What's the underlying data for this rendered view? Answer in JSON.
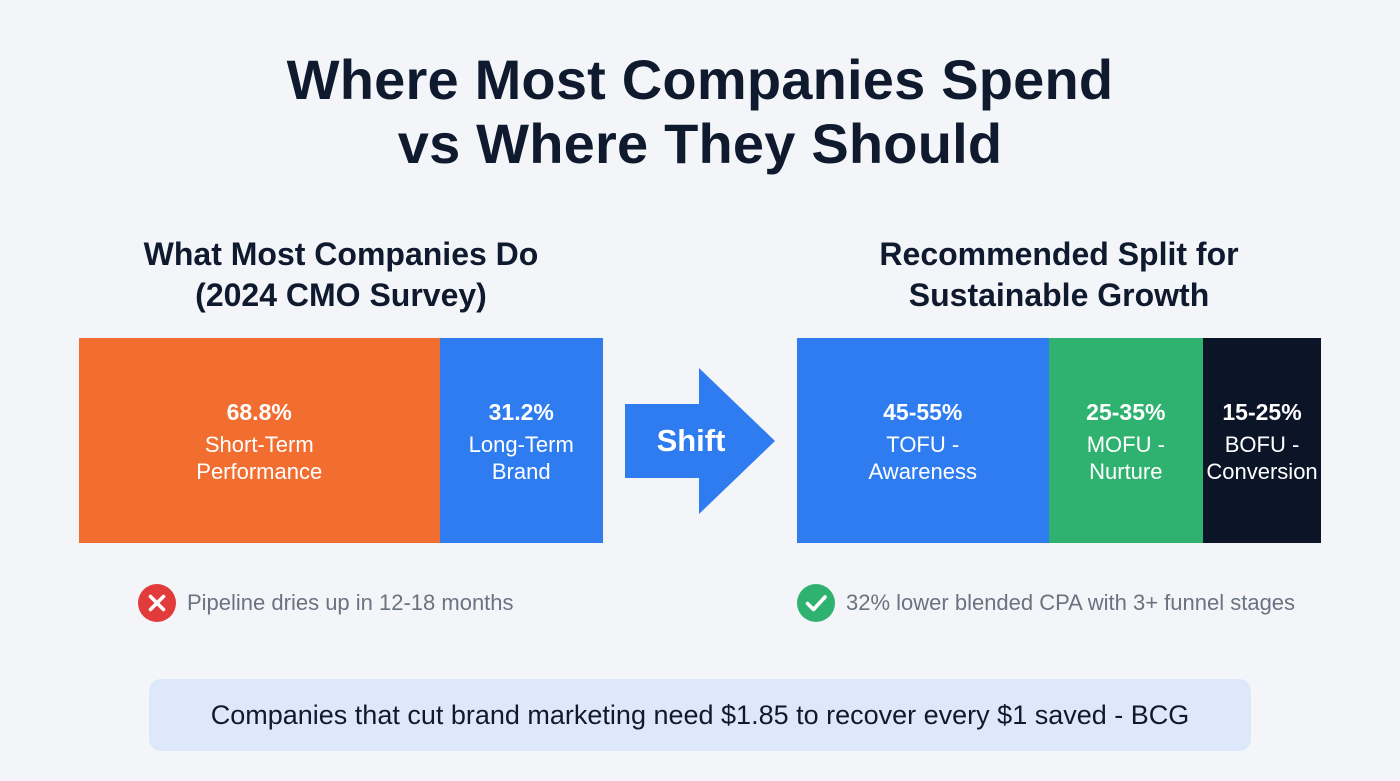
{
  "title": {
    "line1": "Where Most Companies Spend",
    "line2": "vs Where They Should"
  },
  "chart_data": [
    {
      "type": "bar",
      "orientation": "horizontal-stacked",
      "title": "What Most Companies Do (2024 CMO Survey)",
      "title_lines": [
        "What Most Companies Do",
        "(2024 CMO Survey)"
      ],
      "categories": [
        "Short-Term Performance",
        "Long-Term Brand"
      ],
      "values": [
        68.8,
        31.2
      ],
      "value_labels": [
        "68.8%",
        "31.2%"
      ],
      "label_lines": [
        [
          "Short-Term",
          "Performance"
        ],
        [
          "Long-Term",
          "Brand"
        ]
      ],
      "colors": [
        "#f26d30",
        "#2f7cf0"
      ],
      "unit": "%"
    },
    {
      "type": "bar",
      "orientation": "horizontal-stacked",
      "title": "Recommended Split for Sustainable Growth",
      "title_lines": [
        "Recommended Split for",
        "Sustainable Growth"
      ],
      "categories": [
        "TOFU - Awareness",
        "MOFU - Nurture",
        "BOFU - Conversion"
      ],
      "values": [
        48,
        29.5,
        22.5
      ],
      "value_labels": [
        "45-55%",
        "25-35%",
        "15-25%"
      ],
      "label_lines": [
        [
          "TOFU -",
          "Awareness"
        ],
        [
          "MOFU -",
          "Nurture"
        ],
        [
          "BOFU -",
          "Conversion"
        ]
      ],
      "colors": [
        "#2f7cf0",
        "#2fb26f",
        "#0c1428"
      ],
      "unit": "%"
    }
  ],
  "arrow": {
    "label": "Shift",
    "color": "#2f7cf0"
  },
  "notes": {
    "left": {
      "icon": "x-circle-icon",
      "text": "Pipeline dries up in 12-18 months",
      "color": "#e23b3b"
    },
    "right": {
      "icon": "check-circle-icon",
      "text": "32% lower blended CPA with 3+ funnel stages",
      "color": "#2fb26f"
    }
  },
  "footer": {
    "text": "Companies that cut brand marketing need $1.85 to recover every $1 saved - BCG"
  }
}
